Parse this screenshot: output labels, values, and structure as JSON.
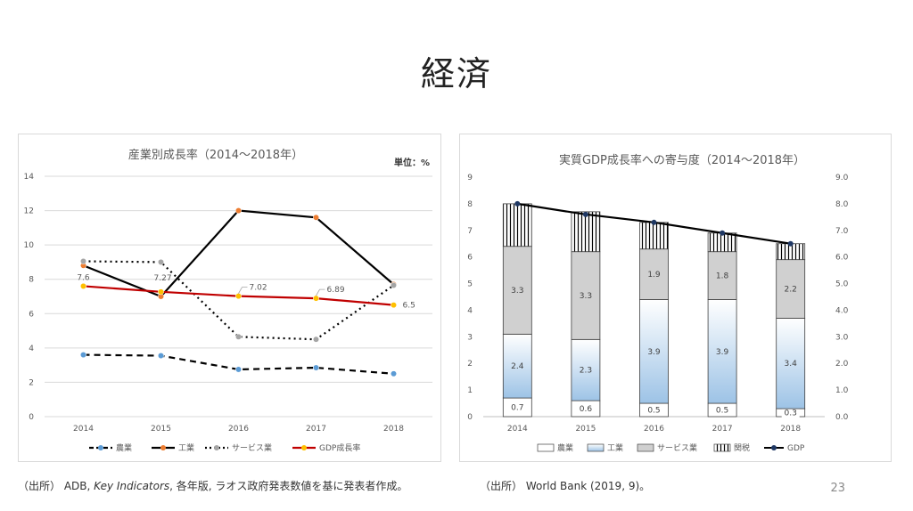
{
  "slide": {
    "title": "経済",
    "page_number": "23",
    "source_left_prefix": "（出所） ADB, ",
    "source_left_italic": "Key Indicators",
    "source_left_suffix": ", 各年版, ラオス政府発表数値を基に発表者作成。",
    "source_right": "（出所） World Bank (2019, 9)。"
  },
  "chart_data": [
    {
      "type": "line",
      "title": "産業別成長率（2014～2018年）",
      "unit_label": "単位：%",
      "categories": [
        "2014",
        "2015",
        "2016",
        "2017",
        "2018"
      ],
      "ylim": [
        0,
        14
      ],
      "yticks": [
        0,
        2,
        4,
        6,
        8,
        10,
        12,
        14
      ],
      "grid": true,
      "legend_position": "bottom",
      "series": [
        {
          "name": "農業",
          "values": [
            3.6,
            3.55,
            2.75,
            2.85,
            2.5
          ],
          "color": "#000000",
          "marker_color": "#5b9bd5",
          "dash": "dashed"
        },
        {
          "name": "工業",
          "values": [
            8.8,
            7.0,
            12.0,
            11.6,
            7.7
          ],
          "color": "#000000",
          "marker_color": "#ed7d31",
          "dash": "solid"
        },
        {
          "name": "サービス業",
          "values": [
            9.05,
            9.0,
            4.65,
            4.5,
            7.65
          ],
          "color": "#000000",
          "marker_color": "#a5a5a5",
          "dash": "dotted"
        },
        {
          "name": "GDP成長率",
          "values": [
            7.6,
            7.27,
            7.02,
            6.89,
            6.5
          ],
          "color": "#c00000",
          "marker_color": "#ffc000",
          "dash": "solid"
        }
      ],
      "data_labels": [
        "7.6",
        "7.27",
        "7.02",
        "6.89",
        "6.5"
      ]
    },
    {
      "type": "bar",
      "subtype": "stacked-bar-with-line",
      "title": "実質GDP成長率への寄与度（2014～2018年）",
      "categories": [
        "2014",
        "2015",
        "2016",
        "2017",
        "2018"
      ],
      "ylim": [
        0,
        9
      ],
      "yticks": [
        "0",
        "1",
        "2",
        "3",
        "4",
        "5",
        "6",
        "7",
        "8",
        "9"
      ],
      "y2ticks": [
        "0.0",
        "1.0",
        "2.0",
        "3.0",
        "4.0",
        "5.0",
        "6.0",
        "7.0",
        "8.0",
        "9.0"
      ],
      "grid": false,
      "legend_position": "bottom",
      "series": [
        {
          "name": "農業",
          "values": [
            0.7,
            0.6,
            0.5,
            0.5,
            0.3
          ],
          "labels": [
            "0.7",
            "0.6",
            "0.5",
            "0.5",
            "0.3"
          ],
          "fill": "#ffffff"
        },
        {
          "name": "工業",
          "values": [
            2.4,
            2.3,
            3.9,
            3.9,
            3.4
          ],
          "labels": [
            "2.4",
            "2.3",
            "3.9",
            "3.9",
            "3.4"
          ],
          "fill": "#bdd7ee"
        },
        {
          "name": "サービス業",
          "values": [
            3.3,
            3.3,
            1.9,
            1.8,
            2.2
          ],
          "labels": [
            "3.3",
            "3.3",
            "1.9",
            "1.8",
            "2.2"
          ],
          "fill": "#d0d0d0"
        },
        {
          "name": "関税",
          "values": [
            1.6,
            1.5,
            1.0,
            0.7,
            0.6
          ],
          "fill": "hatch"
        }
      ],
      "line_series": {
        "name": "GDP",
        "values": [
          8.0,
          7.6,
          7.3,
          6.9,
          6.5
        ],
        "color": "#000000",
        "marker_color": "#1f3864"
      }
    }
  ]
}
